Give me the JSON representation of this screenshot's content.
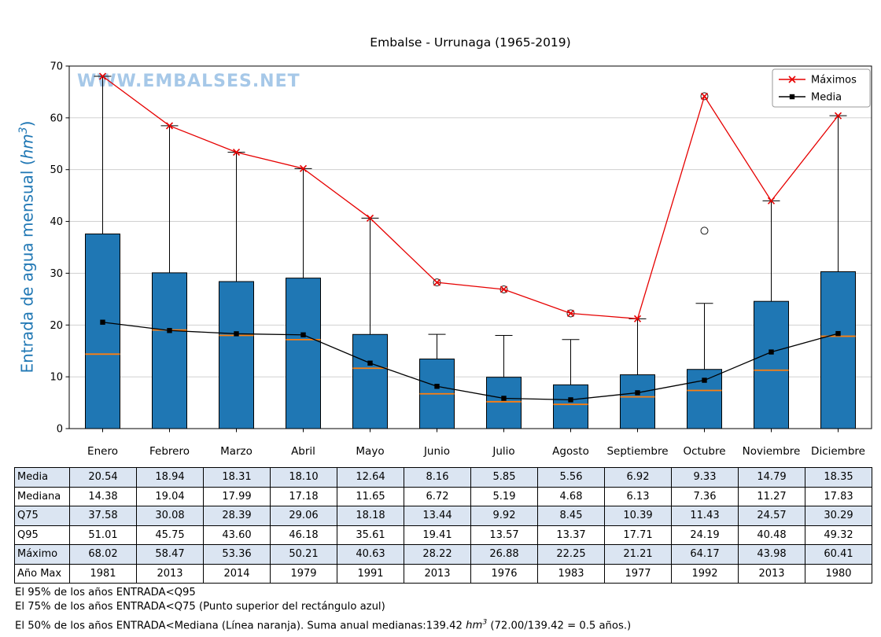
{
  "title": "Embalse - Urrunaga (1965-2019)",
  "watermark": "WWW.EMBALSES.NET",
  "y_axis": {
    "label_prefix": "Entrada de agua mensual (",
    "label_unit": "hm",
    "label_sup": "3",
    "label_suffix": ")"
  },
  "legend": {
    "maximos_label": "Máximos",
    "media_label": "Media"
  },
  "footer": {
    "line1": "El 95% de los años ENTRADA<Q95",
    "line2": "El 75% de los años ENTRADA<Q75 (Punto superior del rectángulo azul)",
    "line3_before": "El 50% de los años ENTRADA<Mediana (Línea naranja). Suma anual medianas:139.42 ",
    "line3_unit": "hm",
    "line3_unit_sup": "3",
    "line3_after": " (72.00/139.42 = 0.5 años.)"
  },
  "colors": {
    "box_fill": "#1f77b4",
    "box_edge": "#000000",
    "median_line": "#ff7f0e",
    "maximos_line": "#e60000",
    "media_line": "#000000",
    "watermark": "#9dc3e6",
    "ylabel": "#1f77b4",
    "table_shade": "#dbe5f2",
    "grid": "#c9c9c9"
  },
  "table": {
    "rows": [
      {
        "label": "Media",
        "key": "media",
        "format": "2dp"
      },
      {
        "label": "Mediana",
        "key": "mediana",
        "format": "2dp"
      },
      {
        "label": "Q75",
        "key": "q75",
        "format": "2dp"
      },
      {
        "label": "Q95",
        "key": "q95",
        "format": "2dp"
      },
      {
        "label": "Máximo",
        "key": "maximo",
        "format": "2dp"
      },
      {
        "label": "Año Max",
        "key": "ano_max",
        "format": "int"
      }
    ]
  },
  "chart_data": {
    "type": "boxplot",
    "title": "Embalse - Urrunaga (1965-2019)",
    "xlabel": "",
    "ylabel": "Entrada de agua mensual (hm³)",
    "ylim": [
      0,
      70
    ],
    "yticks": [
      0,
      10,
      20,
      30,
      40,
      50,
      60,
      70
    ],
    "grid": "horizontal",
    "legend_position": "upper right",
    "categories": [
      "Enero",
      "Febrero",
      "Marzo",
      "Abril",
      "Mayo",
      "Junio",
      "Julio",
      "Agosto",
      "Septiembre",
      "Octubre",
      "Noviembre",
      "Diciembre"
    ],
    "series": {
      "media": [
        20.54,
        18.94,
        18.31,
        18.1,
        12.64,
        8.16,
        5.85,
        5.56,
        6.92,
        9.33,
        14.79,
        18.35
      ],
      "mediana": [
        14.38,
        19.04,
        17.99,
        17.18,
        11.65,
        6.72,
        5.19,
        4.68,
        6.13,
        7.36,
        11.27,
        17.83
      ],
      "q75": [
        37.58,
        30.08,
        28.39,
        29.06,
        18.18,
        13.44,
        9.92,
        8.45,
        10.39,
        11.43,
        24.57,
        30.29
      ],
      "q95": [
        51.01,
        45.75,
        43.6,
        46.18,
        35.61,
        19.41,
        13.57,
        13.37,
        17.71,
        24.19,
        40.48,
        49.32
      ],
      "maximo": [
        68.02,
        58.47,
        53.36,
        50.21,
        40.63,
        28.22,
        26.88,
        22.25,
        21.21,
        64.17,
        43.98,
        60.41
      ],
      "ano_max": [
        1981,
        2013,
        2014,
        1979,
        1991,
        2013,
        1976,
        1983,
        1977,
        1992,
        2013,
        1980
      ]
    },
    "box_bottom": 0,
    "whisker_top": [
      68.02,
      58.47,
      53.36,
      50.21,
      40.63,
      18.2,
      18.0,
      17.2,
      21.21,
      24.19,
      43.98,
      60.41
    ],
    "outliers": [
      [],
      [],
      [],
      [],
      [],
      [
        28.22
      ],
      [
        26.88
      ],
      [
        22.25
      ],
      [],
      [
        38.2,
        64.17
      ],
      [],
      []
    ]
  }
}
